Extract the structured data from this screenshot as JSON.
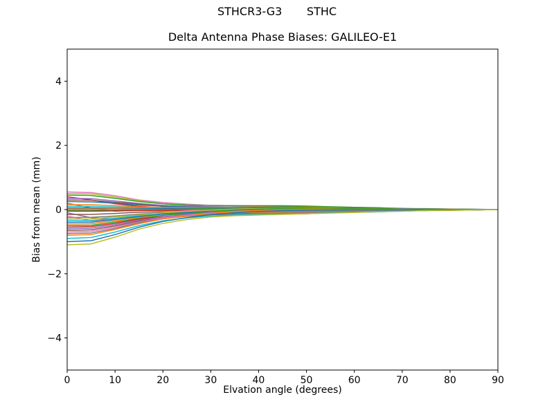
{
  "figure": {
    "suptitle": "STHCR3-G3       STHC",
    "background": "#ffffff",
    "spine_color": "#000000"
  },
  "chart_data": {
    "type": "line",
    "suptitle": "STHCR3-G3       STHC",
    "title": "Delta Antenna Phase Biases: GALILEO-E1",
    "xlabel": "Elvation angle (degrees)",
    "ylabel": "Bias from mean (mm)",
    "xlim": [
      0,
      90
    ],
    "ylim": [
      -5,
      5
    ],
    "xticks": [
      0,
      10,
      20,
      30,
      40,
      50,
      60,
      70,
      80,
      90
    ],
    "yticks": [
      -4,
      -2,
      0,
      2,
      4
    ],
    "xtick_labels": [
      "0",
      "10",
      "20",
      "30",
      "40",
      "50",
      "60",
      "70",
      "80",
      "90"
    ],
    "ytick_labels": [
      "−4",
      "−2",
      "0",
      "2",
      "4"
    ],
    "grid": false,
    "legend": "none",
    "x": [
      0,
      5,
      10,
      15,
      20,
      25,
      30,
      35,
      40,
      45,
      50,
      55,
      60,
      65,
      70,
      75,
      80,
      85,
      90
    ],
    "series": [
      {
        "color": "#e377c2",
        "values": [
          0.55,
          0.53,
          0.43,
          0.3,
          0.22,
          0.17,
          0.13,
          0.12,
          0.11,
          0.11,
          0.1,
          0.08,
          0.07,
          0.05,
          0.04,
          0.02,
          0.02,
          0.01,
          0.0
        ]
      },
      {
        "color": "#bcbd22",
        "values": [
          0.5,
          0.49,
          0.39,
          0.28,
          0.18,
          0.13,
          0.08,
          0.03,
          0.01,
          0.0,
          -0.01,
          -0.01,
          0.0,
          0.0,
          0.0,
          0.0,
          0.0,
          0.0,
          0.0
        ]
      },
      {
        "color": "#2ca02c",
        "values": [
          0.45,
          0.44,
          0.35,
          0.25,
          0.18,
          0.14,
          0.13,
          0.12,
          0.12,
          0.12,
          0.11,
          0.09,
          0.07,
          0.06,
          0.03,
          0.03,
          0.02,
          0.01,
          0.0
        ]
      },
      {
        "color": "#d62728",
        "values": [
          0.4,
          0.3,
          0.18,
          0.1,
          0.06,
          0.04,
          0.02,
          0.01,
          -0.02,
          -0.03,
          -0.04,
          -0.04,
          -0.02,
          -0.01,
          -0.01,
          0.0,
          0.0,
          0.0,
          0.0
        ]
      },
      {
        "color": "#9467bd",
        "values": [
          0.35,
          0.34,
          0.27,
          0.19,
          0.13,
          0.1,
          0.09,
          0.08,
          0.08,
          0.07,
          0.07,
          0.05,
          0.04,
          0.03,
          0.02,
          0.02,
          0.01,
          0.0,
          0.0
        ]
      },
      {
        "color": "#8c564b",
        "values": [
          0.3,
          0.29,
          0.23,
          0.17,
          0.1,
          0.06,
          0.02,
          -0.02,
          -0.04,
          -0.05,
          -0.06,
          -0.04,
          -0.03,
          -0.03,
          -0.01,
          -0.01,
          -0.01,
          0.0,
          0.0
        ]
      },
      {
        "color": "#1f77b4",
        "values": [
          0.25,
          0.24,
          0.2,
          0.14,
          0.11,
          0.08,
          0.07,
          0.08,
          0.08,
          0.07,
          0.07,
          0.06,
          0.04,
          0.03,
          0.03,
          0.02,
          0.01,
          0.0,
          0.0
        ]
      },
      {
        "color": "#7f7f7f",
        "values": [
          0.2,
          0.05,
          -0.05,
          -0.02,
          0.02,
          0.02,
          0.02,
          0.0,
          -0.02,
          -0.02,
          -0.02,
          -0.02,
          -0.01,
          -0.01,
          0.0,
          -0.01,
          0.0,
          0.0,
          0.0
        ]
      },
      {
        "color": "#ff7f0e",
        "values": [
          0.15,
          0.15,
          0.12,
          0.08,
          0.07,
          0.06,
          0.06,
          0.07,
          0.08,
          0.08,
          0.08,
          0.07,
          0.05,
          0.04,
          0.02,
          0.01,
          0.01,
          0.0,
          0.0
        ]
      },
      {
        "color": "#17becf",
        "values": [
          0.1,
          0.1,
          0.08,
          0.06,
          0.03,
          0.01,
          -0.01,
          -0.03,
          -0.04,
          -0.05,
          -0.05,
          -0.04,
          -0.03,
          -0.03,
          -0.02,
          -0.01,
          -0.01,
          0.0,
          0.0
        ]
      },
      {
        "color": "#1f77b4",
        "values": [
          0.05,
          0.05,
          0.04,
          0.03,
          0.03,
          0.03,
          0.04,
          0.05,
          0.06,
          0.06,
          0.06,
          0.05,
          0.04,
          0.03,
          0.02,
          0.01,
          0.01,
          0.0,
          0.0
        ]
      },
      {
        "color": "#ff7f0e",
        "values": [
          0.02,
          0.02,
          0.02,
          0.01,
          0.0,
          -0.01,
          -0.02,
          -0.03,
          -0.04,
          -0.05,
          -0.05,
          -0.04,
          -0.03,
          -0.02,
          -0.02,
          -0.01,
          -0.01,
          0.0,
          0.0
        ]
      },
      {
        "color": "#2ca02c",
        "values": [
          -0.02,
          -0.02,
          -0.02,
          -0.01,
          0.0,
          0.01,
          0.03,
          0.05,
          0.07,
          0.08,
          0.07,
          0.06,
          0.05,
          0.04,
          0.02,
          0.02,
          0.01,
          0.0,
          0.0
        ]
      },
      {
        "color": "#d62728",
        "values": [
          -0.05,
          -0.05,
          -0.04,
          -0.03,
          -0.03,
          -0.03,
          -0.04,
          -0.06,
          -0.07,
          -0.08,
          -0.08,
          -0.07,
          -0.05,
          -0.03,
          -0.02,
          -0.02,
          -0.01,
          0.0,
          0.0
        ]
      },
      {
        "color": "#9467bd",
        "values": [
          -0.1,
          -0.25,
          -0.3,
          -0.22,
          -0.12,
          -0.04,
          0.0,
          0.02,
          0.03,
          0.03,
          0.03,
          0.02,
          0.02,
          0.01,
          0.01,
          0.0,
          0.0,
          0.0,
          0.0
        ]
      },
      {
        "color": "#8c564b",
        "values": [
          -0.15,
          -0.15,
          -0.12,
          -0.08,
          -0.07,
          -0.06,
          -0.07,
          -0.08,
          -0.09,
          -0.09,
          -0.09,
          -0.07,
          -0.06,
          -0.05,
          -0.03,
          -0.02,
          -0.01,
          0.0,
          0.0
        ]
      },
      {
        "color": "#e377c2",
        "values": [
          -0.2,
          -0.35,
          -0.3,
          -0.18,
          -0.09,
          -0.04,
          -0.02,
          0.01,
          0.03,
          0.03,
          0.03,
          0.03,
          0.02,
          0.01,
          0.01,
          0.01,
          0.01,
          0.0,
          0.0
        ]
      },
      {
        "color": "#7f7f7f",
        "values": [
          -0.25,
          -0.24,
          -0.2,
          -0.14,
          -0.1,
          -0.08,
          -0.07,
          -0.07,
          -0.07,
          -0.06,
          -0.06,
          -0.05,
          -0.03,
          -0.03,
          -0.02,
          -0.02,
          0.0,
          0.0,
          0.0
        ]
      },
      {
        "color": "#bcbd22",
        "values": [
          -0.3,
          -0.29,
          -0.23,
          -0.17,
          -0.1,
          -0.06,
          -0.03,
          0.01,
          0.03,
          0.04,
          0.05,
          0.04,
          0.02,
          0.02,
          0.01,
          0.0,
          0.01,
          0.0,
          0.0
        ]
      },
      {
        "color": "#17becf",
        "values": [
          -0.35,
          -0.34,
          -0.27,
          -0.19,
          -0.14,
          -0.11,
          -0.1,
          -0.09,
          -0.09,
          -0.09,
          -0.09,
          -0.07,
          -0.06,
          -0.04,
          -0.03,
          -0.02,
          -0.02,
          0.0,
          0.0
        ]
      },
      {
        "color": "#1f77b4",
        "values": [
          -0.4,
          -0.39,
          -0.31,
          -0.22,
          -0.14,
          -0.09,
          -0.05,
          -0.02,
          0.01,
          0.02,
          0.03,
          0.03,
          0.02,
          0.01,
          0.01,
          0.0,
          0.0,
          0.0,
          0.0
        ]
      },
      {
        "color": "#ff7f0e",
        "values": [
          -0.45,
          -0.44,
          -0.35,
          -0.25,
          -0.18,
          -0.13,
          -0.11,
          -0.1,
          -0.1,
          -0.09,
          -0.08,
          -0.07,
          -0.05,
          -0.04,
          -0.03,
          -0.02,
          -0.02,
          -0.01,
          0.0
        ]
      },
      {
        "color": "#2ca02c",
        "values": [
          -0.5,
          -0.49,
          -0.39,
          -0.28,
          -0.18,
          -0.12,
          -0.06,
          -0.01,
          0.01,
          0.03,
          0.04,
          0.03,
          0.02,
          0.02,
          0.0,
          0.01,
          0.0,
          0.0,
          0.0
        ]
      },
      {
        "color": "#d62728",
        "values": [
          -0.55,
          -0.53,
          -0.43,
          -0.3,
          -0.22,
          -0.17,
          -0.13,
          -0.13,
          -0.12,
          -0.12,
          -0.11,
          -0.09,
          -0.07,
          -0.05,
          -0.04,
          -0.02,
          -0.02,
          -0.01,
          0.0
        ]
      },
      {
        "color": "#9467bd",
        "values": [
          -0.6,
          -0.58,
          -0.47,
          -0.33,
          -0.23,
          -0.15,
          -0.09,
          -0.05,
          -0.03,
          -0.01,
          -0.01,
          -0.01,
          -0.01,
          0.0,
          -0.01,
          0.0,
          -0.01,
          0.0,
          0.0
        ]
      },
      {
        "color": "#8c564b",
        "values": [
          -0.65,
          -0.63,
          -0.51,
          -0.36,
          -0.26,
          -0.2,
          -0.16,
          -0.15,
          -0.14,
          -0.14,
          -0.13,
          -0.1,
          -0.08,
          -0.07,
          -0.04,
          -0.03,
          -0.02,
          -0.01,
          0.0
        ]
      },
      {
        "color": "#e377c2",
        "values": [
          -0.7,
          -0.68,
          -0.55,
          -0.39,
          -0.26,
          -0.18,
          -0.11,
          -0.06,
          -0.03,
          -0.01,
          0.0,
          0.0,
          -0.01,
          -0.01,
          0.0,
          -0.01,
          0.0,
          -0.01,
          0.0
        ]
      },
      {
        "color": "#7f7f7f",
        "values": [
          -0.75,
          -0.73,
          -0.59,
          -0.41,
          -0.29,
          -0.21,
          -0.16,
          -0.14,
          -0.12,
          -0.11,
          -0.1,
          -0.08,
          -0.06,
          -0.05,
          -0.03,
          -0.03,
          -0.01,
          -0.01,
          0.0
        ]
      },
      {
        "color": "#ff7f0e",
        "values": [
          -0.8,
          -0.78,
          -0.62,
          -0.44,
          -0.29,
          -0.2,
          -0.12,
          -0.06,
          -0.03,
          0.0,
          0.01,
          0.01,
          0.0,
          0.0,
          0.0,
          -0.01,
          0.0,
          -0.01,
          0.0
        ]
      },
      {
        "color": "#17becf",
        "values": [
          -0.9,
          -0.87,
          -0.7,
          -0.5,
          -0.35,
          -0.26,
          -0.2,
          -0.17,
          -0.15,
          -0.14,
          -0.13,
          -0.1,
          -0.09,
          -0.07,
          -0.05,
          -0.03,
          -0.02,
          -0.01,
          0.0
        ]
      },
      {
        "color": "#1f77b4",
        "values": [
          -1.0,
          -0.97,
          -0.78,
          -0.55,
          -0.37,
          -0.25,
          -0.16,
          -0.1,
          -0.06,
          -0.03,
          -0.02,
          -0.01,
          -0.01,
          -0.01,
          -0.01,
          -0.01,
          -0.01,
          -0.01,
          0.0
        ]
      },
      {
        "color": "#bcbd22",
        "values": [
          -1.1,
          -1.07,
          -0.86,
          -0.61,
          -0.43,
          -0.31,
          -0.23,
          -0.19,
          -0.17,
          -0.15,
          -0.13,
          -0.11,
          -0.09,
          -0.06,
          -0.05,
          -0.03,
          -0.03,
          -0.01,
          0.0
        ]
      }
    ]
  }
}
